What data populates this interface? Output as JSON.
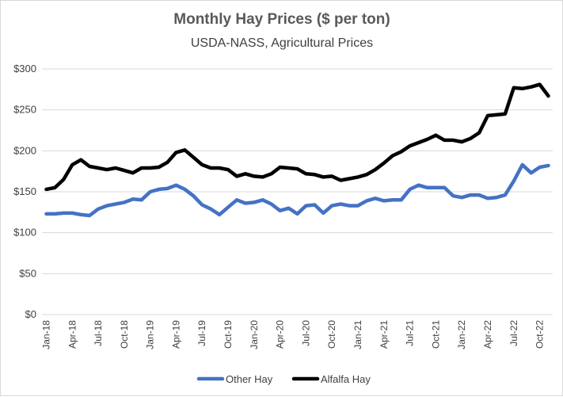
{
  "chart_data": {
    "type": "line",
    "title": "Monthly Hay Prices ($ per ton)",
    "subtitle": "USDA-NASS, Agricultural Prices",
    "xlabel": "",
    "ylabel": "",
    "ylim": [
      0,
      300
    ],
    "yticks": [
      "$0",
      "$50",
      "$100",
      "$150",
      "$200",
      "$250",
      "$300"
    ],
    "ytick_values": [
      0,
      50,
      100,
      150,
      200,
      250,
      300
    ],
    "grid": true,
    "legend": "bottom",
    "x": [
      "Jan-18",
      "Feb-18",
      "Mar-18",
      "Apr-18",
      "May-18",
      "Jun-18",
      "Jul-18",
      "Aug-18",
      "Sep-18",
      "Oct-18",
      "Nov-18",
      "Dec-18",
      "Jan-19",
      "Feb-19",
      "Mar-19",
      "Apr-19",
      "May-19",
      "Jun-19",
      "Jul-19",
      "Aug-19",
      "Sep-19",
      "Oct-19",
      "Nov-19",
      "Dec-19",
      "Jan-20",
      "Feb-20",
      "Mar-20",
      "Apr-20",
      "May-20",
      "Jun-20",
      "Jul-20",
      "Aug-20",
      "Sep-20",
      "Oct-20",
      "Nov-20",
      "Dec-20",
      "Jan-21",
      "Feb-21",
      "Mar-21",
      "Apr-21",
      "May-21",
      "Jun-21",
      "Jul-21",
      "Aug-21",
      "Sep-21",
      "Oct-21",
      "Nov-21",
      "Dec-21",
      "Jan-22",
      "Feb-22",
      "Mar-22",
      "Apr-22",
      "May-22",
      "Jun-22",
      "Jul-22",
      "Aug-22",
      "Sep-22",
      "Oct-22",
      "Nov-22"
    ],
    "x_tick_labels": [
      "Jan-18",
      "Apr-18",
      "Jul-18",
      "Oct-18",
      "Jan-19",
      "Apr-19",
      "Jul-19",
      "Oct-19",
      "Jan-20",
      "Apr-20",
      "Jul-20",
      "Oct-20",
      "Jan-21",
      "Apr-21",
      "Jul-21",
      "Oct-21",
      "Jan-22",
      "Apr-22",
      "Jul-22",
      "Oct-22"
    ],
    "series": [
      {
        "name": "Other Hay",
        "color": "#4472c4",
        "values": [
          123,
          123,
          124,
          124,
          122,
          121,
          129,
          133,
          135,
          137,
          141,
          140,
          150,
          153,
          154,
          158,
          153,
          145,
          134,
          129,
          122,
          131,
          140,
          136,
          137,
          140,
          135,
          127,
          130,
          123,
          133,
          134,
          124,
          133,
          135,
          133,
          133,
          139,
          142,
          139,
          140,
          140,
          153,
          158,
          155,
          155,
          155,
          145,
          143,
          146,
          146,
          142,
          143,
          146,
          163,
          183,
          173,
          180,
          182
        ]
      },
      {
        "name": "Alfalfa Hay",
        "color": "#000000",
        "values": [
          153,
          155,
          165,
          183,
          189,
          181,
          179,
          177,
          179,
          176,
          173,
          179,
          179,
          180,
          186,
          198,
          201,
          192,
          183,
          179,
          179,
          177,
          169,
          172,
          169,
          168,
          172,
          180,
          179,
          178,
          172,
          171,
          168,
          169,
          164,
          166,
          168,
          171,
          177,
          185,
          194,
          199,
          206,
          210,
          214,
          219,
          213,
          213,
          211,
          215,
          222,
          243,
          244,
          245,
          277,
          276,
          278,
          281,
          267
        ]
      }
    ]
  }
}
